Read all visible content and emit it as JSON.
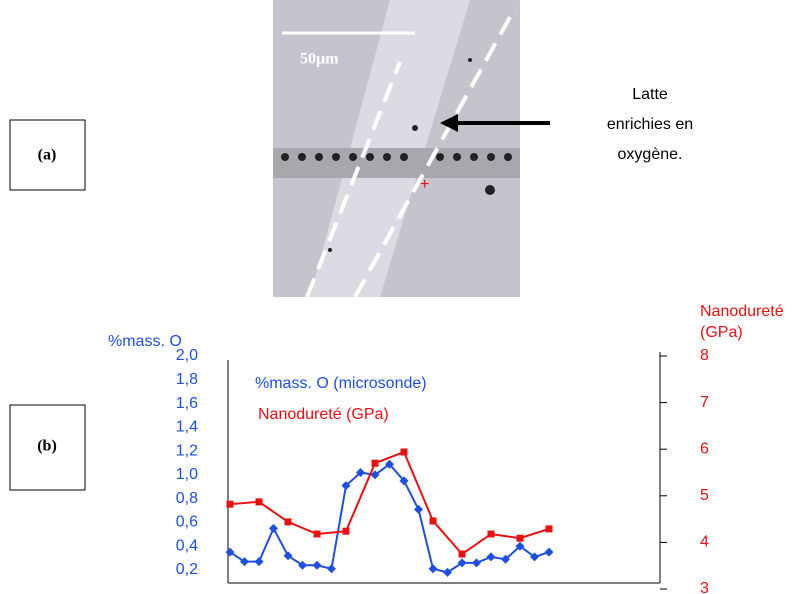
{
  "figure": {
    "panel_a_label": "(a)",
    "panel_b_label": "(b)",
    "scale_bar": "50µm",
    "annotation": [
      "Latte",
      "enrichies en",
      "oxygène."
    ]
  },
  "chart_data": {
    "type": "line",
    "ylabel": "%mass. O",
    "y2label": [
      "Nanodureté",
      "(GPa)"
    ],
    "categories": [
      null,
      null,
      null,
      null,
      null,
      null,
      null,
      null,
      null,
      null,
      null,
      null,
      null,
      null,
      null,
      null,
      null,
      null,
      null,
      null,
      null,
      null,
      null
    ],
    "ylim": [
      0.2,
      2.0
    ],
    "yticks": [
      {
        "value": 0.2,
        "label": "0,2"
      },
      {
        "value": 0.4,
        "label": "0,4"
      },
      {
        "value": 0.6,
        "label": "0,6"
      },
      {
        "value": 0.8,
        "label": "0,8"
      },
      {
        "value": 1.0,
        "label": "1,0"
      },
      {
        "value": 1.2,
        "label": "1,2"
      },
      {
        "value": 1.4,
        "label": "1,4"
      },
      {
        "value": 1.6,
        "label": "1,6"
      },
      {
        "value": 1.8,
        "label": "1,8"
      },
      {
        "value": 2.0,
        "label": "2,0"
      }
    ],
    "y2lim": [
      3,
      8
    ],
    "y2ticks": [
      3,
      4,
      5,
      6,
      7,
      8
    ],
    "series": [
      {
        "name": "%mass. O (microsonde)",
        "color": "#1f4fe0",
        "marker": "diamond",
        "values": [
          0.35,
          0.27,
          0.27,
          0.55,
          0.32,
          0.24,
          0.24,
          0.21,
          0.91,
          1.02,
          1.0,
          1.09,
          0.95,
          0.71,
          0.21,
          0.18,
          0.26,
          0.26,
          0.31,
          0.29,
          0.4,
          0.31,
          0.35
        ]
      },
      {
        "name": "Nanodureté (GPa)",
        "color": "#e81010",
        "marker": "square",
        "axis": "y2",
        "values": [
          4.82,
          null,
          4.87,
          null,
          4.44,
          null,
          4.18,
          null,
          4.24,
          null,
          5.7,
          null,
          5.94,
          null,
          4.46,
          null,
          3.75,
          null,
          4.18,
          null,
          4.09,
          null,
          4.29
        ]
      }
    ]
  }
}
